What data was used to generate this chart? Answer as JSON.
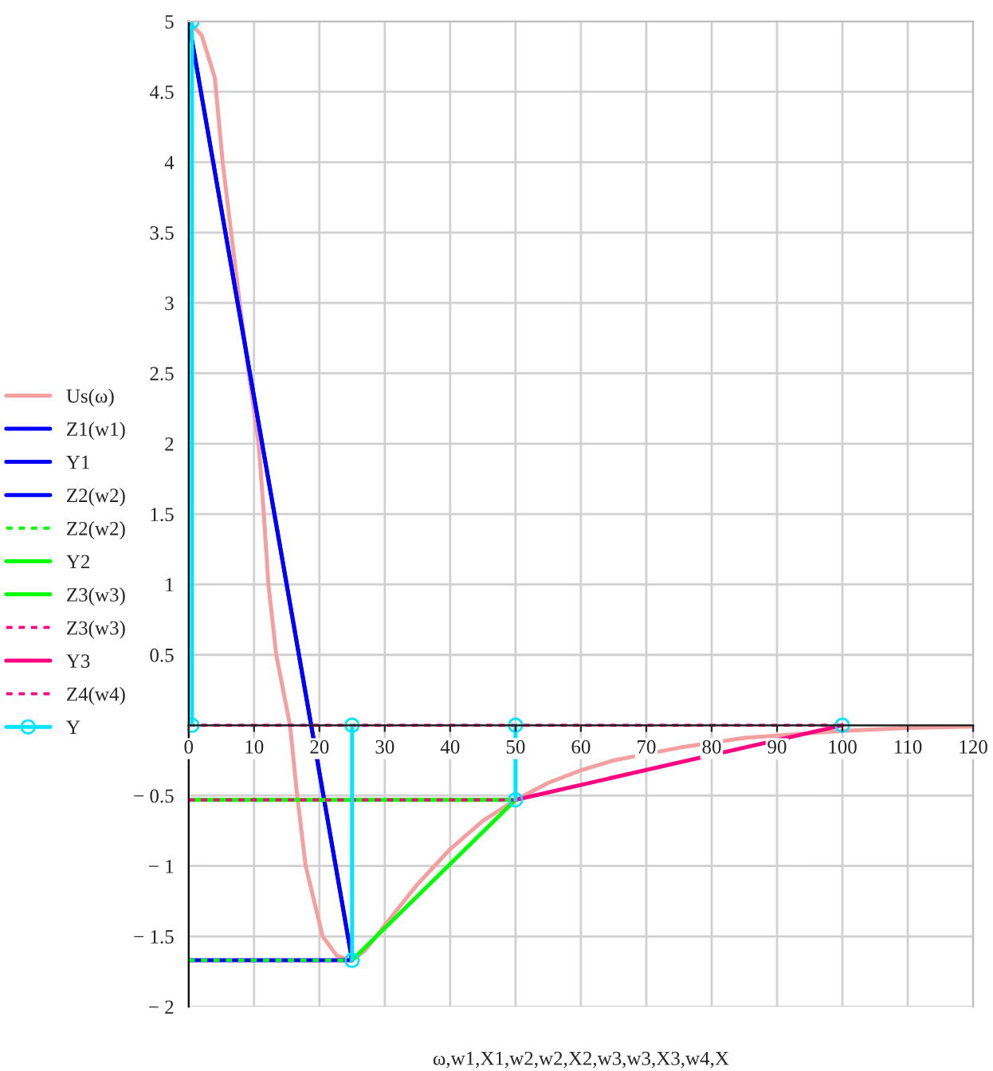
{
  "chart_data": {
    "type": "line",
    "xlabel": "ω,w1,X1,w2,w2,X2,w3,w3,X3,w4,X",
    "xlim": [
      0,
      120
    ],
    "xticks": [
      0,
      10,
      20,
      30,
      40,
      50,
      60,
      70,
      80,
      90,
      100,
      110,
      120
    ],
    "ylim": [
      -2,
      5
    ],
    "yticks": [
      {
        "value": -2,
        "label": "− 2"
      },
      {
        "value": -1.5,
        "label": "− 1.5"
      },
      {
        "value": -1,
        "label": "− 1"
      },
      {
        "value": -0.5,
        "label": "− 0.5"
      },
      {
        "value": 0,
        "label": null
      },
      0.5,
      1,
      1.5,
      2,
      2.5,
      3,
      3.5,
      4,
      4.5,
      5
    ],
    "grid": true,
    "legend": "left",
    "marker": "none",
    "line_style": "solid",
    "series": [
      {
        "name": "Us(ω)",
        "color": "#f4a0a0",
        "x": [
          0,
          2,
          4,
          5.2,
          6.5,
          7.8,
          9.2,
          10.7,
          11.5,
          12.2,
          13.4,
          15.5,
          16.6,
          17.9,
          20.5,
          22.7,
          25,
          27,
          30,
          35,
          40,
          45,
          50,
          55,
          60,
          65,
          75,
          85,
          100,
          110,
          120
        ],
        "values": [
          5,
          4.9,
          4.6,
          4,
          3.5,
          3,
          2.5,
          2,
          1.5,
          1,
          0.5,
          0,
          -0.5,
          -1,
          -1.5,
          -1.64,
          -1.67,
          -1.6,
          -1.42,
          -1.13,
          -0.88,
          -0.68,
          -0.53,
          -0.41,
          -0.32,
          -0.25,
          -0.16,
          -0.09,
          -0.04,
          -0.02,
          -0.01
        ]
      },
      {
        "name": "Z1(w1)",
        "color": "#0000ff",
        "x": [
          0,
          25
        ],
        "values": [
          5,
          -1.67
        ]
      },
      {
        "name": "Y1",
        "color": "#0000ff",
        "x": [
          0,
          25
        ],
        "values": [
          5,
          -1.67
        ]
      },
      {
        "name": "Z2(w2)",
        "color": "#0000ff",
        "x": [
          0,
          25
        ],
        "values": [
          -1.67,
          -1.67
        ]
      },
      {
        "name": "Z2(w2)",
        "color": "#00ff00",
        "line_style": "dotted",
        "x": [
          0,
          25
        ],
        "values": [
          -1.67,
          -1.67
        ]
      },
      {
        "name": "Y2",
        "color": "#00ff00",
        "x": [
          25,
          50
        ],
        "values": [
          -1.67,
          -0.53
        ]
      },
      {
        "name": "Z3(w3)",
        "color": "#00ff00",
        "x": [
          0,
          50
        ],
        "values": [
          -0.53,
          -0.53
        ]
      },
      {
        "name": "Z3(w3)",
        "color": "#ff0080",
        "line_style": "dotted",
        "x": [
          0,
          50
        ],
        "values": [
          -0.53,
          -0.53
        ]
      },
      {
        "name": "Y3",
        "color": "#ff0080",
        "x": [
          50,
          100
        ],
        "values": [
          -0.53,
          0
        ]
      },
      {
        "name": "Z4(w4)",
        "color": "#ff0080",
        "line_style": "dotted",
        "x": [
          0,
          100
        ],
        "values": [
          0,
          0
        ]
      },
      {
        "name": "Y",
        "color": "#00e5ff",
        "marker": "circle",
        "x": [
          0.5,
          0.5,
          null,
          25,
          25,
          null,
          50,
          50,
          null,
          100
        ],
        "values": [
          0,
          5,
          null,
          0,
          -1.67,
          null,
          0,
          -0.53,
          null,
          0
        ]
      }
    ]
  }
}
